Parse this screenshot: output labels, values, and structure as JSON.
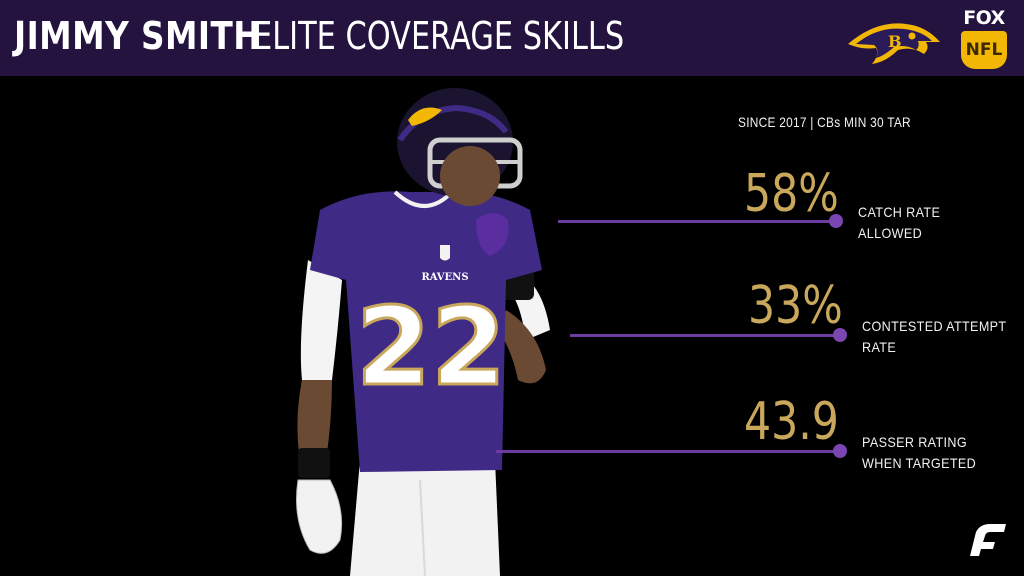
{
  "header": {
    "title_name": "JIMMY SMITH",
    "title_rest": "ELITE COVERAGE SKILLS",
    "fox_label": "FOX",
    "nfl_label": "NFL"
  },
  "player": {
    "jersey_number": "22",
    "chest_text": "RAVENS"
  },
  "subtitle": "SINCE 2017 | CBs MIN 30 TAR",
  "stats": [
    {
      "value": "58%",
      "label_line1": "CATCH RATE",
      "label_line2": "ALLOWED"
    },
    {
      "value": "33%",
      "label_line1": "CONTESTED ATTEMPT",
      "label_line2": "RATE"
    },
    {
      "value": "43.9",
      "label_line1": "PASSER RATING",
      "label_line2": "WHEN TARGETED"
    }
  ],
  "colors": {
    "header_bg": "#25133f",
    "accent_purple": "#6c3c9e",
    "stat_gold": "#c9a85c",
    "jersey_purple": "#3f2a86"
  },
  "icons": {
    "team_logo": "ravens-logo-icon",
    "network_logo": "fox-nfl-icon",
    "brand_logo": "pff-logo-icon"
  }
}
